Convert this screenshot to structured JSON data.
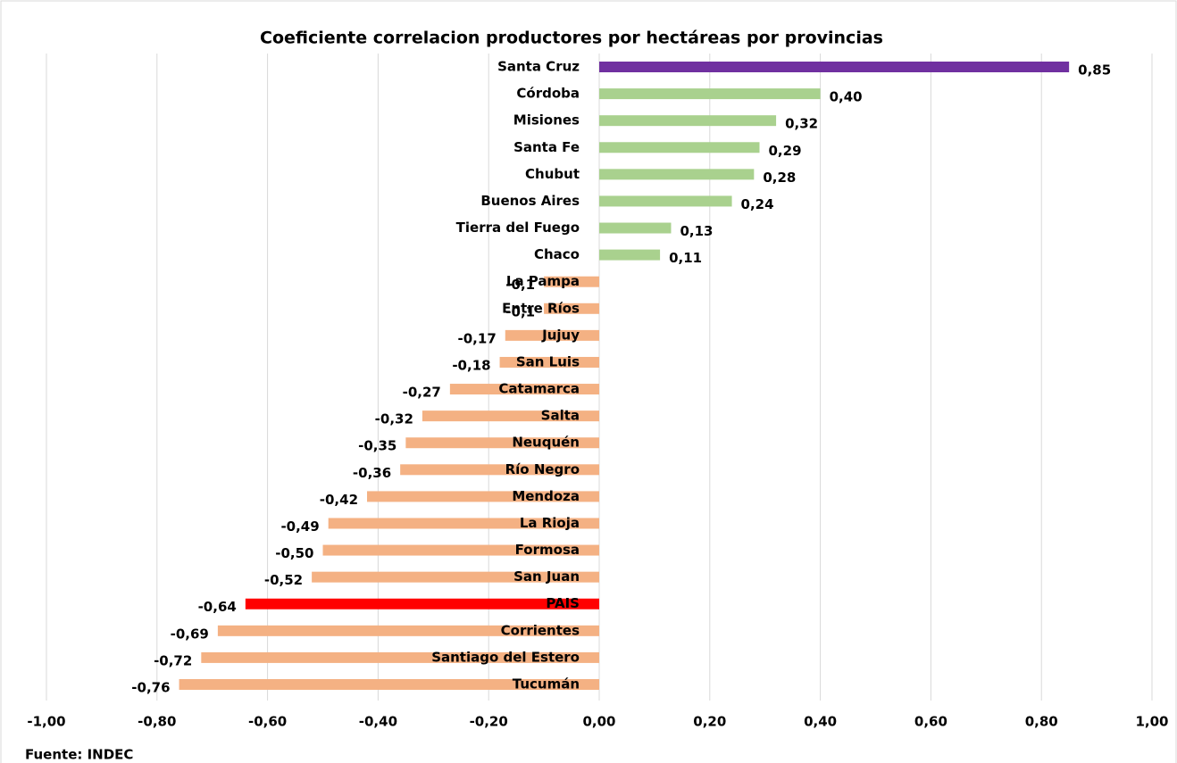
{
  "chart_data": {
    "type": "bar",
    "orientation": "horizontal",
    "title": "Coeficiente correlacion productores por hectáreas  por provincias",
    "categories": [
      "Santa Cruz",
      "Córdoba",
      "Misiones",
      "Santa Fe",
      "Chubut",
      "Buenos Aires",
      "Tierra del Fuego",
      "Chaco",
      "La Pampa",
      "Entre Ríos",
      "Jujuy",
      "San Luis",
      "Catamarca",
      "Salta",
      "Neuquén",
      "Río Negro",
      "Mendoza",
      "La Rioja",
      "Formosa",
      "San Juan",
      "PAIS",
      "Corrientes",
      "Santiago del Estero",
      "Tucumán"
    ],
    "values": [
      0.85,
      0.4,
      0.32,
      0.29,
      0.28,
      0.24,
      0.13,
      0.11,
      -0.1,
      -0.1,
      -0.17,
      -0.18,
      -0.27,
      -0.32,
      -0.35,
      -0.36,
      -0.42,
      -0.49,
      -0.5,
      -0.52,
      -0.64,
      -0.69,
      -0.72,
      -0.76
    ],
    "value_labels": [
      "0,85",
      "0,40",
      "0,32",
      "0,29",
      "0,28",
      "0,24",
      "0,13",
      "0,11",
      "-0,1",
      "-0,1",
      "-0,17",
      "-0,18",
      "-0,27",
      "-0,32",
      "-0,35",
      "-0,36",
      "-0,42",
      "-0,49",
      "-0,50",
      "-0,52",
      "-0,64",
      "-0,69",
      "-0,72",
      "-0,76"
    ],
    "colors": [
      "#7030a0",
      "#a9d18e",
      "#a9d18e",
      "#a9d18e",
      "#a9d18e",
      "#a9d18e",
      "#a9d18e",
      "#a9d18e",
      "#f4b183",
      "#f4b183",
      "#f4b183",
      "#f4b183",
      "#f4b183",
      "#f4b183",
      "#f4b183",
      "#f4b183",
      "#f4b183",
      "#f4b183",
      "#f4b183",
      "#f4b183",
      "#ff0000",
      "#f4b183",
      "#f4b183",
      "#f4b183"
    ],
    "xlim": [
      -1,
      1
    ],
    "xticks": [
      {
        "value": -1,
        "label": "-1,00"
      },
      {
        "value": -0.8,
        "label": "-0,80"
      },
      {
        "value": -0.6,
        "label": "-0,60"
      },
      {
        "value": -0.4,
        "label": "-0,40"
      },
      {
        "value": -0.2,
        "label": "-0,20"
      },
      {
        "value": 0,
        "label": "0,00"
      },
      {
        "value": 0.2,
        "label": "0,20"
      },
      {
        "value": 0.4,
        "label": "0,40"
      },
      {
        "value": 0.6,
        "label": "0,60"
      },
      {
        "value": 0.8,
        "label": "0,80"
      },
      {
        "value": 1,
        "label": "1,00"
      }
    ],
    "grid": true,
    "source": "Fuente: INDEC"
  }
}
